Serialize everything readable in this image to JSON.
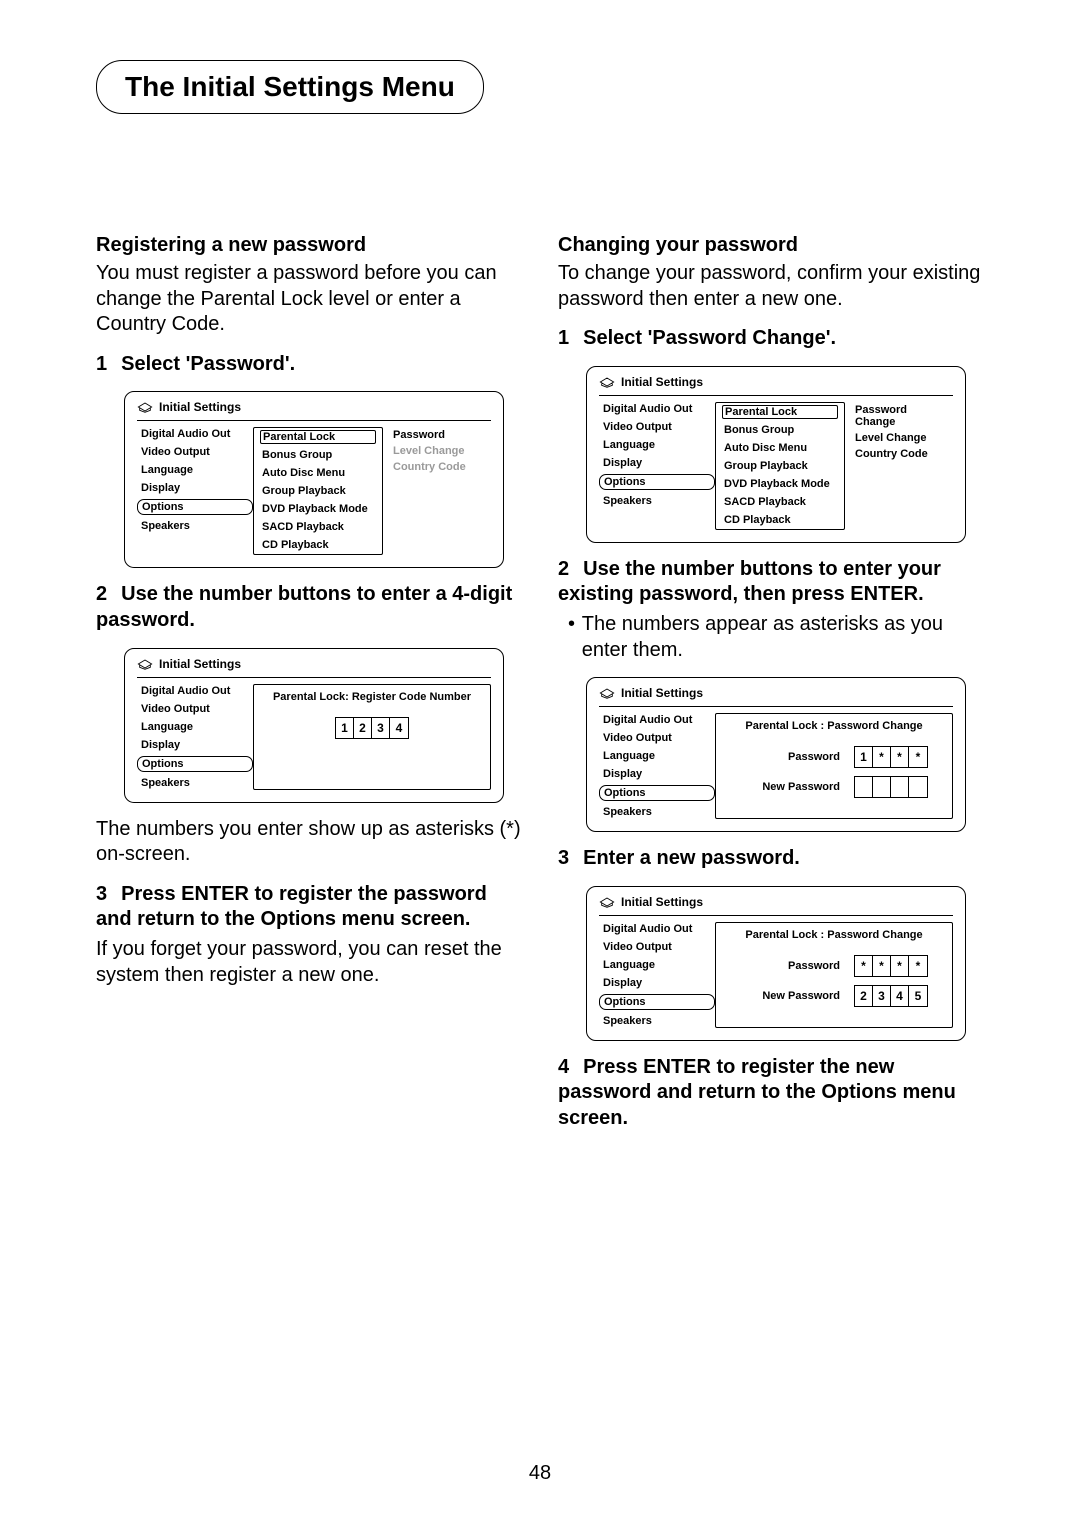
{
  "page_title": "The Initial Settings Menu",
  "page_number": "48",
  "left": {
    "heading": "Registering a new password",
    "intro": "You must register a password before you can change the Parental Lock level or enter a Country Code.",
    "step1": {
      "num": "1",
      "text": "Select 'Password'."
    },
    "menu1": {
      "title": "Initial Settings",
      "left_items": [
        "Digital Audio Out",
        "Video Output",
        "Language",
        "Display",
        "Options",
        "Speakers"
      ],
      "selected_left": "Options",
      "mid_items": [
        "Parental Lock",
        "Bonus Group",
        "Auto Disc Menu",
        "Group Playback",
        "DVD Playback Mode",
        "SACD Playback",
        "CD Playback"
      ],
      "selected_mid": "Parental Lock",
      "right_items": [
        {
          "label": "Password",
          "disabled": false
        },
        {
          "label": "Level Change",
          "disabled": true
        },
        {
          "label": "Country Code",
          "disabled": true
        }
      ]
    },
    "step2": {
      "num": "2",
      "text": "Use the number buttons to enter a 4-digit password."
    },
    "menu2": {
      "title": "Initial Settings",
      "left_items": [
        "Digital Audio Out",
        "Video Output",
        "Language",
        "Display",
        "Options",
        "Speakers"
      ],
      "selected_left": "Options",
      "pane_title": "Parental Lock: Register Code Number",
      "digits": [
        "1",
        "2",
        "3",
        "4"
      ]
    },
    "after2": "The numbers you enter show up as asterisks (*) on-screen.",
    "step3": {
      "num": "3",
      "text": "Press ENTER to register the password and return to the Options menu screen."
    },
    "after3": "If you forget your password, you can reset the system then register a new one."
  },
  "right": {
    "heading": "Changing your password",
    "intro": "To change your password, confirm your existing password then enter a new one.",
    "step1": {
      "num": "1",
      "text": "Select 'Password Change'."
    },
    "menu1": {
      "title": "Initial Settings",
      "left_items": [
        "Digital Audio Out",
        "Video Output",
        "Language",
        "Display",
        "Options",
        "Speakers"
      ],
      "selected_left": "Options",
      "mid_items": [
        "Parental Lock",
        "Bonus Group",
        "Auto Disc Menu",
        "Group Playback",
        "DVD Playback Mode",
        "SACD Playback",
        "CD Playback"
      ],
      "selected_mid": "Parental Lock",
      "right_items": [
        {
          "label": "Password Change",
          "disabled": false
        },
        {
          "label": "Level Change",
          "disabled": false
        },
        {
          "label": "Country Code",
          "disabled": false
        }
      ]
    },
    "step2": {
      "num": "2",
      "text": "Use the number buttons to enter your existing password, then press ENTER."
    },
    "bullet2": "The numbers appear as asterisks as you enter them.",
    "menu2": {
      "title": "Initial Settings",
      "left_items": [
        "Digital Audio Out",
        "Video Output",
        "Language",
        "Display",
        "Options",
        "Speakers"
      ],
      "selected_left": "Options",
      "pane_title": "Parental Lock : Password Change",
      "row1_label": "Password",
      "row1_digits": [
        "1",
        "*",
        "*",
        "*"
      ],
      "row2_label": "New Password",
      "row2_digits": [
        "",
        "",
        "",
        ""
      ]
    },
    "step3": {
      "num": "3",
      "text": "Enter a new password."
    },
    "menu3": {
      "title": "Initial Settings",
      "left_items": [
        "Digital Audio Out",
        "Video Output",
        "Language",
        "Display",
        "Options",
        "Speakers"
      ],
      "selected_left": "Options",
      "pane_title": "Parental Lock : Password Change",
      "row1_label": "Password",
      "row1_digits": [
        "*",
        "*",
        "*",
        "*"
      ],
      "row2_label": "New Password",
      "row2_digits": [
        "2",
        "3",
        "4",
        "5"
      ]
    },
    "step4": {
      "num": "4",
      "text": "Press ENTER to register the new password and return to the Options menu screen."
    }
  }
}
